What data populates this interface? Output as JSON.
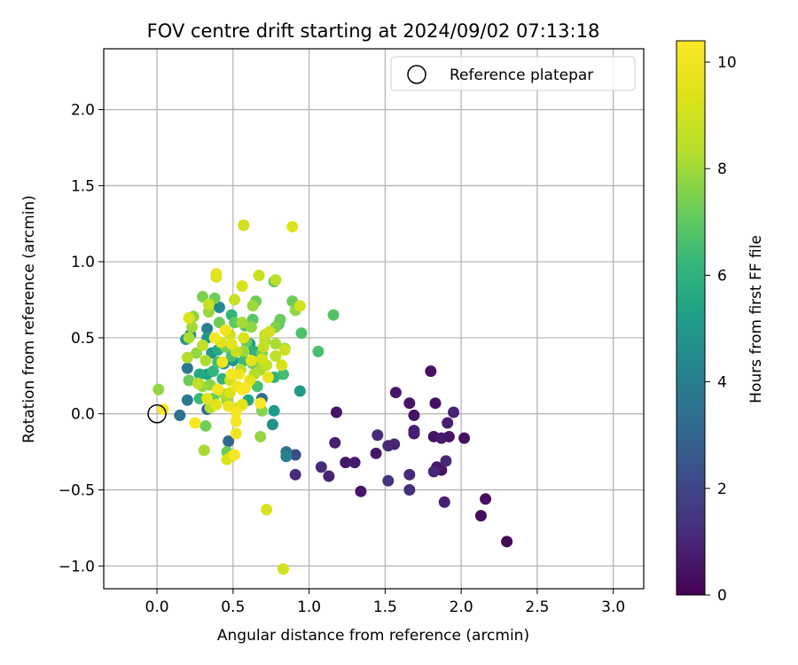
{
  "chart_data": {
    "type": "scatter",
    "title": "FOV centre drift starting at 2024/09/02 07:13:18",
    "xlabel": "Angular distance from reference (arcmin)",
    "ylabel": "Rotation from reference (arcmin)",
    "xlim": [
      -0.35,
      3.2
    ],
    "ylim": [
      -1.15,
      2.4
    ],
    "xticks": [
      0.0,
      0.5,
      1.0,
      1.5,
      2.0,
      2.5,
      3.0
    ],
    "xtick_labels": [
      "0.0",
      "0.5",
      "1.0",
      "1.5",
      "2.0",
      "2.5",
      "3.0"
    ],
    "yticks": [
      -1.0,
      -0.5,
      0.0,
      0.5,
      1.0,
      1.5,
      2.0
    ],
    "ytick_labels": [
      "−1.0",
      "−0.5",
      "0.0",
      "0.5",
      "1.0",
      "1.5",
      "2.0"
    ],
    "grid": true,
    "legend": {
      "position": "top-right",
      "entries": [
        "Reference platepar"
      ]
    },
    "reference_point": {
      "x": 0.0,
      "y": 0.0
    },
    "colorbar": {
      "label": "Hours from first FF file",
      "range": [
        0,
        10.4
      ],
      "ticks": [
        0,
        2,
        4,
        6,
        8,
        10
      ],
      "tick_labels": [
        "0",
        "2",
        "4",
        "6",
        "8",
        "10"
      ],
      "colormap": "viridis"
    },
    "points": [
      {
        "x": 2.3,
        "y": -0.84,
        "c": 0.2
      },
      {
        "x": 2.13,
        "y": -0.67,
        "c": 0.3
      },
      {
        "x": 2.16,
        "y": -0.56,
        "c": 0.3
      },
      {
        "x": 1.89,
        "y": -0.58,
        "c": 0.8
      },
      {
        "x": 2.02,
        "y": -0.16,
        "c": 0.4
      },
      {
        "x": 1.9,
        "y": -0.31,
        "c": 1.0
      },
      {
        "x": 1.87,
        "y": -0.37,
        "c": 0.5
      },
      {
        "x": 1.82,
        "y": -0.38,
        "c": 1.0
      },
      {
        "x": 1.84,
        "y": -0.35,
        "c": 0.6
      },
      {
        "x": 1.92,
        "y": -0.15,
        "c": 0.6
      },
      {
        "x": 1.87,
        "y": -0.16,
        "c": 0.7
      },
      {
        "x": 1.82,
        "y": -0.15,
        "c": 0.5
      },
      {
        "x": 1.91,
        "y": -0.06,
        "c": 0.8
      },
      {
        "x": 1.95,
        "y": 0.01,
        "c": 0.9
      },
      {
        "x": 1.83,
        "y": 0.07,
        "c": 0.4
      },
      {
        "x": 1.8,
        "y": 0.28,
        "c": 0.4
      },
      {
        "x": 1.69,
        "y": -0.13,
        "c": 0.7
      },
      {
        "x": 1.69,
        "y": -0.11,
        "c": 0.8
      },
      {
        "x": 1.69,
        "y": -0.01,
        "c": 0.5
      },
      {
        "x": 1.66,
        "y": 0.07,
        "c": 0.5
      },
      {
        "x": 1.57,
        "y": 0.14,
        "c": 0.6
      },
      {
        "x": 1.66,
        "y": -0.4,
        "c": 1.1
      },
      {
        "x": 1.66,
        "y": -0.5,
        "c": 1.3
      },
      {
        "x": 1.52,
        "y": -0.44,
        "c": 1.4
      },
      {
        "x": 1.56,
        "y": -0.2,
        "c": 0.9
      },
      {
        "x": 1.52,
        "y": -0.21,
        "c": 1.0
      },
      {
        "x": 1.45,
        "y": -0.14,
        "c": 1.2
      },
      {
        "x": 1.44,
        "y": -0.26,
        "c": 0.6
      },
      {
        "x": 1.34,
        "y": -0.51,
        "c": 0.5
      },
      {
        "x": 1.3,
        "y": -0.32,
        "c": 0.7
      },
      {
        "x": 1.24,
        "y": -0.32,
        "c": 0.6
      },
      {
        "x": 1.18,
        "y": 0.01,
        "c": 0.5
      },
      {
        "x": 1.17,
        "y": -0.19,
        "c": 0.8
      },
      {
        "x": 1.13,
        "y": -0.41,
        "c": 0.9
      },
      {
        "x": 1.08,
        "y": -0.35,
        "c": 1.1
      },
      {
        "x": 0.91,
        "y": -0.4,
        "c": 1.2
      },
      {
        "x": 0.91,
        "y": -0.27,
        "c": 2.2
      },
      {
        "x": 0.85,
        "y": -0.25,
        "c": 3.6
      },
      {
        "x": 0.85,
        "y": -0.28,
        "c": 4.2
      },
      {
        "x": 1.16,
        "y": 0.65,
        "c": 6.8
      },
      {
        "x": 1.06,
        "y": 0.41,
        "c": 6.6
      },
      {
        "x": 0.95,
        "y": 0.53,
        "c": 6.7
      },
      {
        "x": 0.94,
        "y": 0.15,
        "c": 5.1
      },
      {
        "x": 0.89,
        "y": 0.74,
        "c": 7.2
      },
      {
        "x": 0.91,
        "y": 0.68,
        "c": 7.8
      },
      {
        "x": 0.94,
        "y": 0.71,
        "c": 9.0
      },
      {
        "x": 0.89,
        "y": 1.23,
        "c": 9.4
      },
      {
        "x": 0.84,
        "y": 0.43,
        "c": 7.9
      },
      {
        "x": 0.84,
        "y": 0.42,
        "c": 9.0
      },
      {
        "x": 0.82,
        "y": 0.32,
        "c": 9.2
      },
      {
        "x": 0.83,
        "y": 0.26,
        "c": 6.5
      },
      {
        "x": 0.77,
        "y": 0.87,
        "c": 6.9
      },
      {
        "x": 0.78,
        "y": 0.88,
        "c": 8.5
      },
      {
        "x": 0.81,
        "y": 0.62,
        "c": 7.2
      },
      {
        "x": 0.8,
        "y": 0.59,
        "c": 6.8
      },
      {
        "x": 0.78,
        "y": 0.57,
        "c": 7.5
      },
      {
        "x": 0.78,
        "y": 0.46,
        "c": 8.1
      },
      {
        "x": 0.78,
        "y": 0.38,
        "c": 8.5
      },
      {
        "x": 0.77,
        "y": 0.24,
        "c": 6.1
      },
      {
        "x": 0.77,
        "y": 0.02,
        "c": 5.1
      },
      {
        "x": 0.76,
        "y": -0.07,
        "c": 4.8
      },
      {
        "x": 0.83,
        "y": -1.02,
        "c": 9.1
      },
      {
        "x": 0.72,
        "y": -0.63,
        "c": 9.3
      },
      {
        "x": 0.73,
        "y": 0.24,
        "c": 9.8
      },
      {
        "x": 0.72,
        "y": 0.32,
        "c": 8.7
      },
      {
        "x": 0.71,
        "y": 0.48,
        "c": 8.4
      },
      {
        "x": 0.71,
        "y": 0.52,
        "c": 8.8
      },
      {
        "x": 0.69,
        "y": 0.4,
        "c": 7.4
      },
      {
        "x": 0.69,
        "y": 0.36,
        "c": 9.1
      },
      {
        "x": 0.68,
        "y": 0.29,
        "c": 8.2
      },
      {
        "x": 0.67,
        "y": 0.91,
        "c": 8.8
      },
      {
        "x": 0.68,
        "y": 0.07,
        "c": 10.2
      },
      {
        "x": 0.69,
        "y": 0.02,
        "c": 7.6
      },
      {
        "x": 0.68,
        "y": -0.15,
        "c": 7.8
      },
      {
        "x": 0.69,
        "y": 0.1,
        "c": 3.3
      },
      {
        "x": 0.65,
        "y": 0.74,
        "c": 7.2
      },
      {
        "x": 0.63,
        "y": 0.71,
        "c": 8.0
      },
      {
        "x": 0.63,
        "y": 0.62,
        "c": 6.9
      },
      {
        "x": 0.64,
        "y": 0.41,
        "c": 6.0
      },
      {
        "x": 0.63,
        "y": 0.33,
        "c": 7.3
      },
      {
        "x": 0.61,
        "y": 0.46,
        "c": 4.8
      },
      {
        "x": 0.62,
        "y": 0.35,
        "c": 9.5
      },
      {
        "x": 0.61,
        "y": 0.22,
        "c": 9.7
      },
      {
        "x": 0.6,
        "y": 0.09,
        "c": 5.5
      },
      {
        "x": 0.57,
        "y": 1.24,
        "c": 9.0
      },
      {
        "x": 0.56,
        "y": 0.84,
        "c": 9.2
      },
      {
        "x": 0.56,
        "y": 0.6,
        "c": 8.1
      },
      {
        "x": 0.58,
        "y": 0.58,
        "c": 6.7
      },
      {
        "x": 0.57,
        "y": 0.5,
        "c": 9.3
      },
      {
        "x": 0.57,
        "y": 0.41,
        "c": 8.0
      },
      {
        "x": 0.57,
        "y": 0.35,
        "c": 6.4
      },
      {
        "x": 0.58,
        "y": 0.17,
        "c": 10.1
      },
      {
        "x": 0.56,
        "y": 0.16,
        "c": 10.3
      },
      {
        "x": 0.56,
        "y": 0.06,
        "c": 9.6
      },
      {
        "x": 0.54,
        "y": 0.26,
        "c": 10.0
      },
      {
        "x": 0.53,
        "y": 0.18,
        "c": 9.8
      },
      {
        "x": 0.53,
        "y": 0.04,
        "c": 9.2
      },
      {
        "x": 0.52,
        "y": 0.01,
        "c": 10.2
      },
      {
        "x": 0.52,
        "y": -0.05,
        "c": 10.1
      },
      {
        "x": 0.52,
        "y": -0.13,
        "c": 10.0
      },
      {
        "x": 0.51,
        "y": -0.27,
        "c": 10.3
      },
      {
        "x": 0.49,
        "y": -0.28,
        "c": 9.0
      },
      {
        "x": 0.46,
        "y": -0.3,
        "c": 9.3
      },
      {
        "x": 0.46,
        "y": -0.25,
        "c": 7.2
      },
      {
        "x": 0.47,
        "y": -0.18,
        "c": 3.1
      },
      {
        "x": 0.51,
        "y": 0.75,
        "c": 8.8
      },
      {
        "x": 0.51,
        "y": 0.6,
        "c": 7.0
      },
      {
        "x": 0.49,
        "y": 0.65,
        "c": 6.2
      },
      {
        "x": 0.48,
        "y": 0.52,
        "c": 8.9
      },
      {
        "x": 0.49,
        "y": 0.46,
        "c": 9.6
      },
      {
        "x": 0.49,
        "y": 0.38,
        "c": 6.6
      },
      {
        "x": 0.5,
        "y": 0.35,
        "c": 5.1
      },
      {
        "x": 0.49,
        "y": 0.26,
        "c": 10.2
      },
      {
        "x": 0.48,
        "y": 0.22,
        "c": 9.0
      },
      {
        "x": 0.47,
        "y": 0.05,
        "c": 9.8
      },
      {
        "x": 0.46,
        "y": 0.09,
        "c": 8.0
      },
      {
        "x": 0.45,
        "y": 0.55,
        "c": 10.0
      },
      {
        "x": 0.45,
        "y": 0.44,
        "c": 7.4
      },
      {
        "x": 0.44,
        "y": 0.33,
        "c": 4.7
      },
      {
        "x": 0.44,
        "y": 0.13,
        "c": 8.3
      },
      {
        "x": 0.43,
        "y": 0.23,
        "c": 6.0
      },
      {
        "x": 0.42,
        "y": 0.47,
        "c": 9.4
      },
      {
        "x": 0.41,
        "y": 0.7,
        "c": 4.4
      },
      {
        "x": 0.41,
        "y": 0.6,
        "c": 7.3
      },
      {
        "x": 0.4,
        "y": 0.42,
        "c": 5.7
      },
      {
        "x": 0.4,
        "y": 0.34,
        "c": 6.5
      },
      {
        "x": 0.4,
        "y": 0.16,
        "c": 10.1
      },
      {
        "x": 0.39,
        "y": 0.06,
        "c": 9.6
      },
      {
        "x": 0.39,
        "y": 0.92,
        "c": 9.5
      },
      {
        "x": 0.39,
        "y": 0.9,
        "c": 9.4
      },
      {
        "x": 0.38,
        "y": 0.5,
        "c": 10.2
      },
      {
        "x": 0.38,
        "y": 0.76,
        "c": 7.3
      },
      {
        "x": 0.37,
        "y": 0.28,
        "c": 6.2
      },
      {
        "x": 0.36,
        "y": 0.4,
        "c": 4.9
      },
      {
        "x": 0.35,
        "y": 0.19,
        "c": 7.7
      },
      {
        "x": 0.35,
        "y": 0.04,
        "c": 8.4
      },
      {
        "x": 0.34,
        "y": 0.72,
        "c": 8.8
      },
      {
        "x": 0.34,
        "y": 0.67,
        "c": 7.9
      },
      {
        "x": 0.33,
        "y": 0.56,
        "c": 4.0
      },
      {
        "x": 0.33,
        "y": 0.5,
        "c": 5.0
      },
      {
        "x": 0.32,
        "y": 0.35,
        "c": 8.2
      },
      {
        "x": 0.33,
        "y": 0.26,
        "c": 5.4
      },
      {
        "x": 0.33,
        "y": 0.1,
        "c": 9.5
      },
      {
        "x": 0.33,
        "y": 0.03,
        "c": 3.3
      },
      {
        "x": 0.32,
        "y": -0.08,
        "c": 7.3
      },
      {
        "x": 0.31,
        "y": -0.24,
        "c": 8.1
      },
      {
        "x": 0.3,
        "y": 0.77,
        "c": 7.5
      },
      {
        "x": 0.3,
        "y": 0.45,
        "c": 8.6
      },
      {
        "x": 0.3,
        "y": 0.18,
        "c": 7.9
      },
      {
        "x": 0.28,
        "y": 0.1,
        "c": 6.3
      },
      {
        "x": 0.27,
        "y": 0.2,
        "c": 8.6
      },
      {
        "x": 0.26,
        "y": 0.4,
        "c": 7.8
      },
      {
        "x": 0.25,
        "y": -0.06,
        "c": 10.2
      },
      {
        "x": 0.24,
        "y": 0.64,
        "c": 7.8
      },
      {
        "x": 0.23,
        "y": 0.57,
        "c": 8.0
      },
      {
        "x": 0.22,
        "y": 0.52,
        "c": 4.4
      },
      {
        "x": 0.21,
        "y": 0.63,
        "c": 9.3
      },
      {
        "x": 0.21,
        "y": 0.5,
        "c": 8.2
      },
      {
        "x": 0.2,
        "y": 0.37,
        "c": 8.3
      },
      {
        "x": 0.2,
        "y": 0.3,
        "c": 3.7
      },
      {
        "x": 0.2,
        "y": 0.09,
        "c": 3.8
      },
      {
        "x": 0.19,
        "y": 0.49,
        "c": 4.7
      },
      {
        "x": 0.21,
        "y": 0.22,
        "c": 7.2
      },
      {
        "x": 0.15,
        "y": -0.01,
        "c": 3.5
      },
      {
        "x": 0.01,
        "y": 0.16,
        "c": 7.8
      },
      {
        "x": 0.04,
        "y": 0.03,
        "c": 10.2
      },
      {
        "x": 0.62,
        "y": 0.57,
        "c": 7.8
      },
      {
        "x": 0.74,
        "y": 0.54,
        "c": 9.0
      },
      {
        "x": 0.55,
        "y": 0.29,
        "c": 8.4
      },
      {
        "x": 0.66,
        "y": 0.18,
        "c": 6.6
      },
      {
        "x": 0.43,
        "y": 0.34,
        "c": 10.0
      },
      {
        "x": 0.37,
        "y": 0.1,
        "c": 7.0
      },
      {
        "x": 0.59,
        "y": 0.47,
        "c": 7.1
      },
      {
        "x": 0.7,
        "y": 0.44,
        "c": 8.7
      },
      {
        "x": 0.28,
        "y": 0.26,
        "c": 5.6
      },
      {
        "x": 0.52,
        "y": 0.41,
        "c": 8.8
      },
      {
        "x": 0.48,
        "y": 0.14,
        "c": 9.4
      },
      {
        "x": 0.64,
        "y": 0.26,
        "c": 8.3
      }
    ]
  }
}
